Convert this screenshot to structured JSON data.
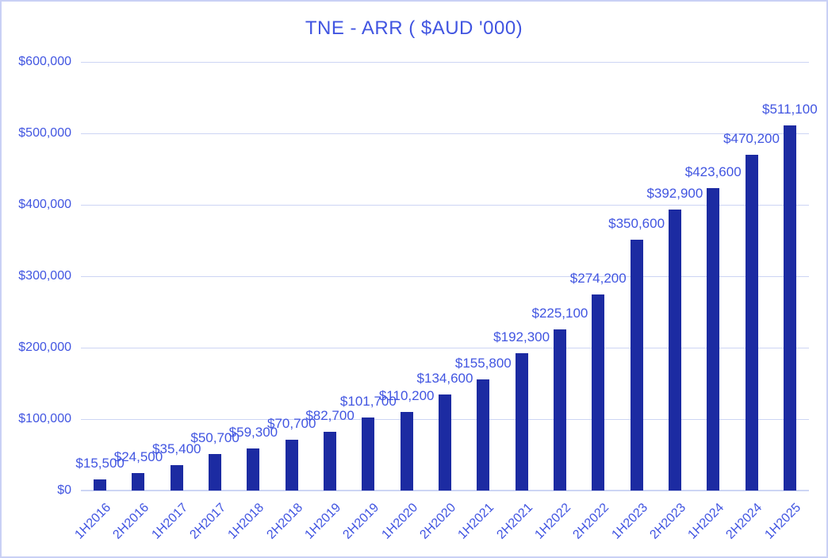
{
  "chart_data": {
    "type": "bar",
    "title": "TNE - ARR ( $AUD '000)",
    "categories": [
      "1H2016",
      "2H2016",
      "1H2017",
      "2H2017",
      "1H2018",
      "2H2018",
      "1H2019",
      "2H2019",
      "1H2020",
      "2H2020",
      "1H2021",
      "2H2021",
      "1H2022",
      "2H2022",
      "1H2023",
      "2H2023",
      "1H2024",
      "2H2024",
      "1H2025"
    ],
    "values": [
      15500,
      24500,
      35400,
      50700,
      59300,
      70700,
      82700,
      101700,
      110200,
      134600,
      155800,
      192300,
      225100,
      274200,
      350600,
      392900,
      423600,
      470200,
      511100
    ],
    "labels": [
      "$15,500",
      "$24,500",
      "$35,400",
      "$50,700",
      "$59,300",
      "$70,700",
      "$82,700",
      "$101,700",
      "$110,200",
      "$134,600",
      "$155,800",
      "$192,300",
      "$225,100",
      "$274,200",
      "$350,600",
      "$392,900",
      "$423,600",
      "$470,200",
      "$511,100"
    ],
    "y_axis": {
      "min": 0,
      "max": 600000,
      "tick_step": 100000,
      "ticks": [
        {
          "label": "$0",
          "value": 0
        },
        {
          "label": "$100,000",
          "value": 100000
        },
        {
          "label": "$200,000",
          "value": 200000
        },
        {
          "label": "$300,000",
          "value": 300000
        },
        {
          "label": "$400,000",
          "value": 400000
        },
        {
          "label": "$500,000",
          "value": 500000
        },
        {
          "label": "$600,000",
          "value": 600000
        }
      ]
    },
    "xlabel": "",
    "ylabel": "",
    "grid": true,
    "legend": false,
    "colors": {
      "bar": "#1C2BA2",
      "text": "#4155E1",
      "gridline": "#CDD5F4",
      "border": "#C9D0F5",
      "background": "#FFFFFF"
    }
  }
}
